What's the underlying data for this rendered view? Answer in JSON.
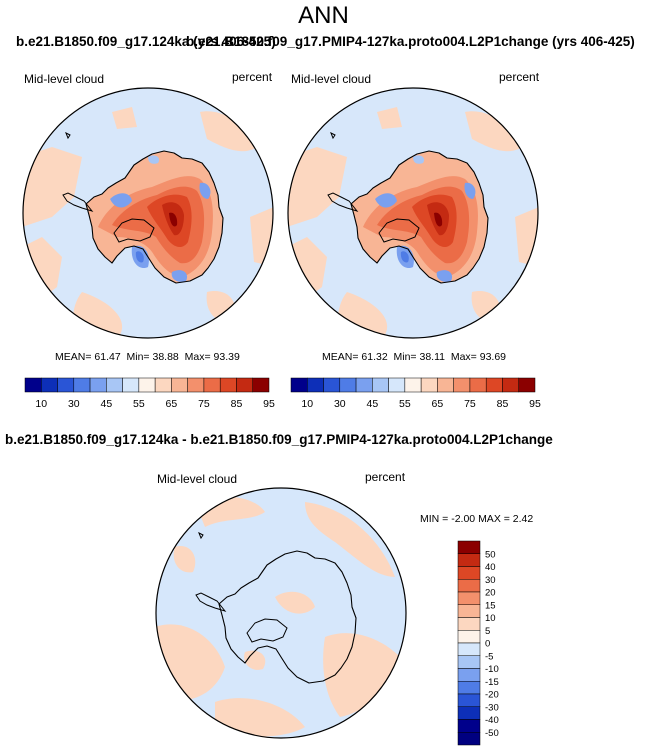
{
  "title": "ANN",
  "panel1_title": "b.e21.B1850.f09_g17.124ka (yrs 406-425)",
  "panel2_title": "b.e21.B1850.f09_g17.PMIP4-127ka.proto004.L2P1change (yrs 406-425)",
  "diff_title": "b.e21.B1850.f09_g17.124ka - b.e21.B1850.f09_g17.PMIP4-127ka.proto004.L2P1change",
  "colors": {
    "blue_scale": [
      "#00008b",
      "#0d2fb8",
      "#2a55d6",
      "#4f7ce6",
      "#7aa0ef",
      "#a8c6f5",
      "#d6e7fb"
    ],
    "neutral": "#fdf3ea",
    "red_scale": [
      "#fcd7c0",
      "#f8b595",
      "#f3906c",
      "#eb6c47",
      "#dd4725",
      "#c42a12",
      "#8b0000"
    ],
    "ocean": "#d7e7fa",
    "outline": "#000000"
  },
  "chart_data": [
    {
      "type": "heatmap",
      "subtitle": "Mid-level cloud",
      "units": "percent",
      "stats": {
        "mean_label": "MEAN=",
        "mean": "61.47",
        "min_label": "Min=",
        "min": "38.88",
        "max_label": "Max=",
        "max": "93.39"
      },
      "colorbar_ticks": [
        "10",
        "30",
        "45",
        "55",
        "65",
        "75",
        "85",
        "95"
      ]
    },
    {
      "type": "heatmap",
      "subtitle": "Mid-level cloud",
      "units": "percent",
      "stats": {
        "mean_label": "MEAN=",
        "mean": "61.32",
        "min_label": "Min=",
        "min": "38.11",
        "max_label": "Max=",
        "max": "93.69"
      },
      "colorbar_ticks": [
        "10",
        "30",
        "45",
        "55",
        "65",
        "75",
        "85",
        "95"
      ]
    },
    {
      "type": "heatmap",
      "subtitle": "Mid-level cloud",
      "units": "percent",
      "range_text": "MIN = -2.00 MAX = 2.42",
      "colorbar_ticks": [
        "50",
        "40",
        "30",
        "20",
        "15",
        "10",
        "5",
        "0",
        "-5",
        "-10",
        "-15",
        "-20",
        "-30",
        "-40",
        "-50"
      ]
    }
  ]
}
